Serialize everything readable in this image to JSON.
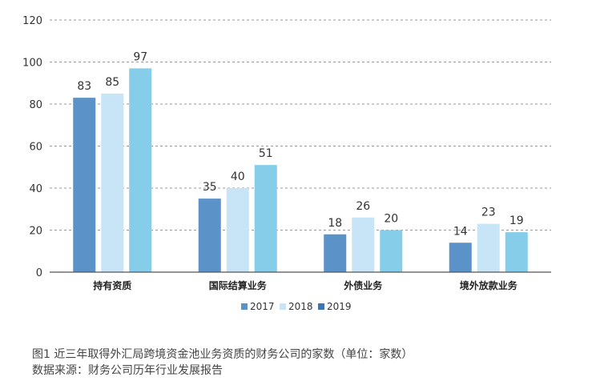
{
  "chart_data": {
    "type": "bar",
    "categories": [
      "持有资质",
      "国际结算业务",
      "外债业务",
      "境外放款业务"
    ],
    "series": [
      {
        "name": "2017",
        "values": [
          83,
          35,
          18,
          14
        ],
        "color": "#5b93c9"
      },
      {
        "name": "2018",
        "values": [
          85,
          40,
          26,
          23
        ],
        "color": "#c7e5f6"
      },
      {
        "name": "2019",
        "values": [
          97,
          51,
          20,
          19
        ],
        "color": "#86cdea"
      }
    ],
    "legend_swatch_2019": "#3d74b3",
    "ylim": [
      0,
      120
    ],
    "yticks": [
      0,
      20,
      40,
      60,
      80,
      100,
      120
    ],
    "grid": "dashed horizontal",
    "legend_position": "bottom-center",
    "title": "",
    "xlabel": "",
    "ylabel": ""
  },
  "caption": {
    "line1": "图1  近三年取得外汇局跨境资金池业务资质的财务公司的家数（单位：家数）",
    "line2": "数据来源：财务公司历年行业发展报告"
  }
}
